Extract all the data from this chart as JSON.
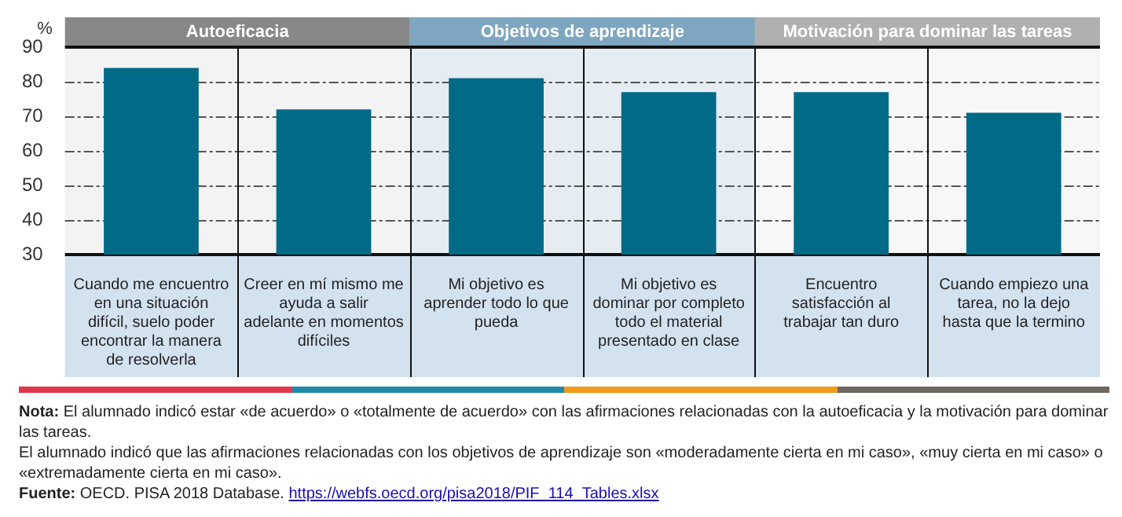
{
  "chart_data": {
    "type": "bar",
    "ylabel": "%",
    "categories": [
      "Cuando me encuentro en una situación difícil, suelo poder encontrar la manera de resolverla",
      "Creer en mí mismo me ayuda a salir adelante en momentos difíciles",
      "Mi objetivo es aprender todo lo que pueda",
      "Mi objetivo es dominar por completo todo el material presentado en clase",
      "Encuentro satisfacción al trabajar tan duro",
      "Cuando empiezo una tarea, no la dejo hasta que la termino"
    ],
    "values": [
      84,
      72,
      81,
      77,
      77,
      71
    ],
    "color": "#006a87",
    "ylim": [
      30,
      90
    ],
    "yticks": [
      30,
      40,
      50,
      60,
      70,
      80,
      90
    ],
    "grid": "y",
    "legend": false,
    "bands": [
      {
        "axis": "x",
        "from": "Cuando me encuentro en una situación difícil, suelo poder encontrar la manera de resolverla",
        "to": "Creer en mí mismo me ayuda a salir adelante en momentos difíciles",
        "label": "Autoeficacia",
        "color": "#888888"
      },
      {
        "axis": "x",
        "from": "Mi objetivo es aprender todo lo que pueda",
        "to": "Mi objetivo es dominar por completo todo el material presentado en clase",
        "label": "Objetivos de aprendizaje",
        "color": "#7fa6c0"
      },
      {
        "axis": "x",
        "from": "Encuentro satisfacción al trabajar tan duro",
        "to": "Cuando empiezo una tarea, no la dejo hasta que la termino",
        "label": "Motivación para dominar las tareas",
        "color": "#b0b0b0"
      }
    ],
    "annotations": [
      "Nota: El alumnado indicó estar «de acuerdo» o «totalmente de acuerdo» con las afirmaciones relacionadas con la autoeficacia y la motivación para dominar las tareas.",
      "El alumnado indicó que las afirmaciones relacionadas con los objetivos de aprendizaje son «moderadamente cierta en mi caso», «muy cierta en mi caso» o «extremadamente cierta en mi caso».",
      "Fuente: OECD. PISA 2018 Database. https://webfs.oecd.org/pisa2018/PIF_114_Tables.xlsx"
    ]
  }
}
